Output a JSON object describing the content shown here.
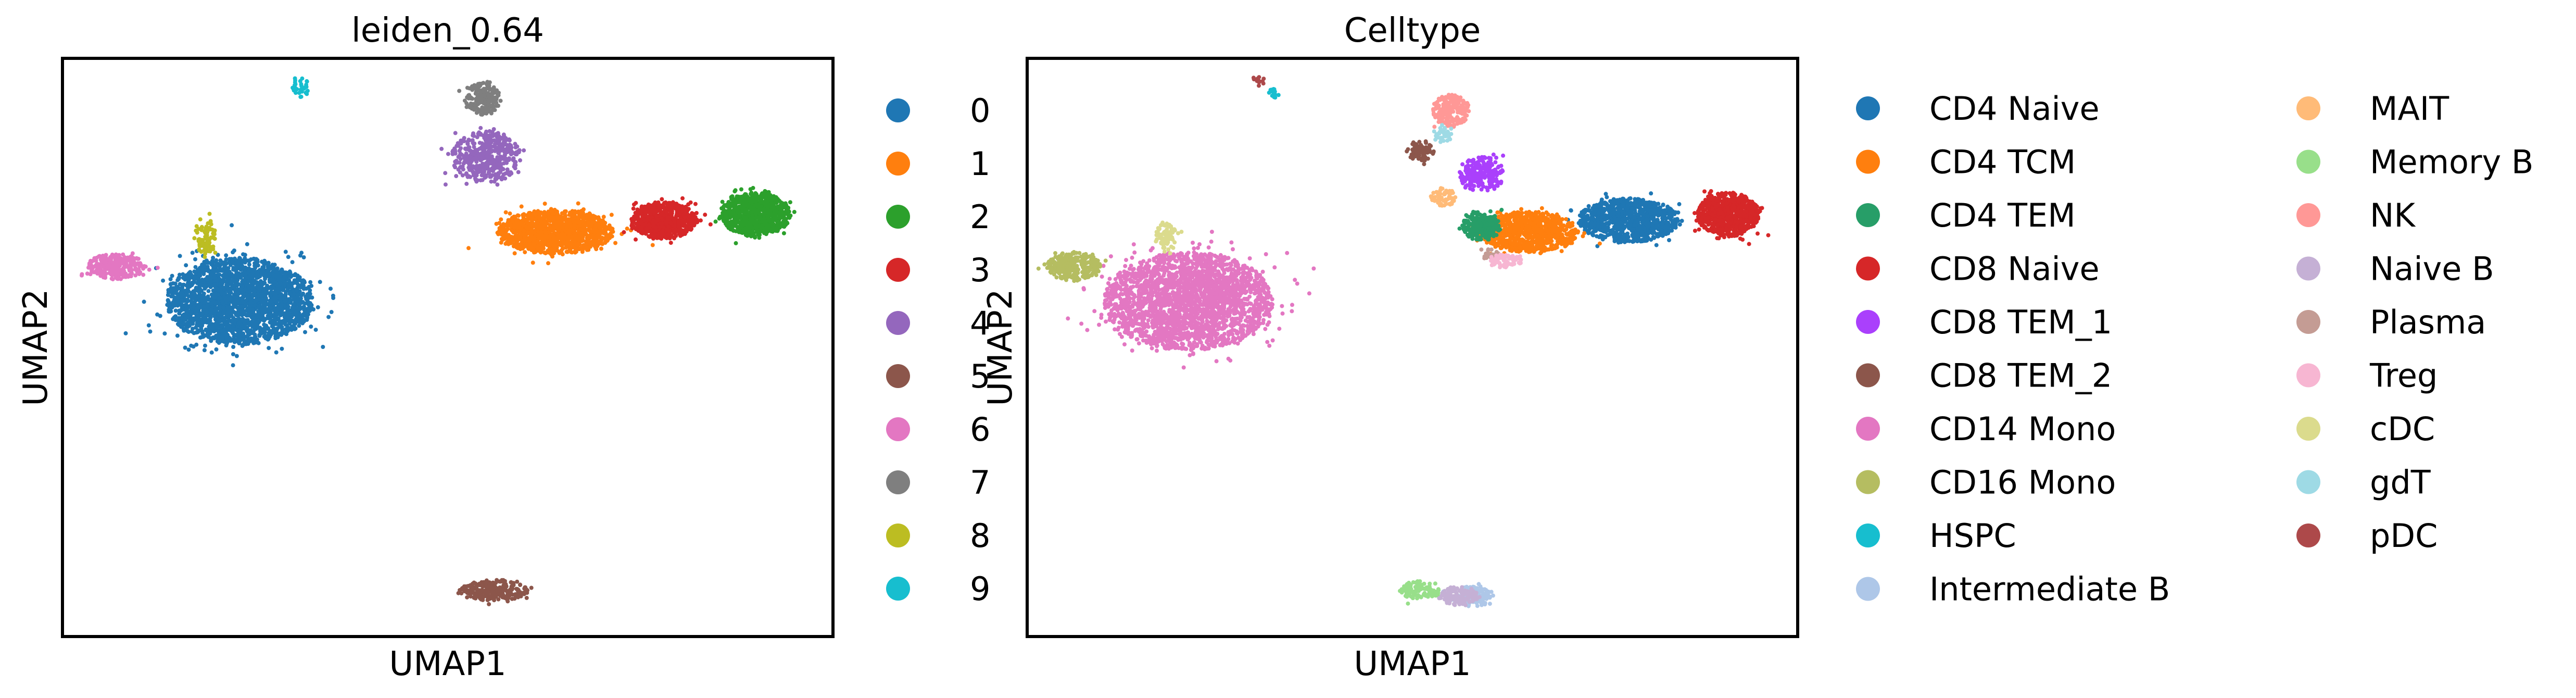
{
  "chart_data": [
    {
      "type": "scatter",
      "title": "leiden_0.64",
      "xlabel": "UMAP1",
      "ylabel": "UMAP2",
      "xlim": [
        0,
        100
      ],
      "ylim": [
        0,
        100
      ],
      "grid": false,
      "legend_placement": "right",
      "series": [
        {
          "name": "0",
          "color": "#1f77b4",
          "clusters": [
            {
              "cx": 23,
              "cy": 58,
              "rx": 9.5,
              "ry": 7.5,
              "n": 2400
            }
          ]
        },
        {
          "name": "1",
          "color": "#ff7f0e",
          "clusters": [
            {
              "cx": 64,
              "cy": 70,
              "rx": 7.5,
              "ry": 3.8,
              "n": 1200
            }
          ]
        },
        {
          "name": "2",
          "color": "#2ca02c",
          "clusters": [
            {
              "cx": 90,
              "cy": 73,
              "rx": 4.5,
              "ry": 3.8,
              "n": 800
            }
          ]
        },
        {
          "name": "3",
          "color": "#d62728",
          "clusters": [
            {
              "cx": 78,
              "cy": 72,
              "rx": 4.2,
              "ry": 3.2,
              "n": 700
            }
          ]
        },
        {
          "name": "4",
          "color": "#9467bd",
          "clusters": [
            {
              "cx": 55,
              "cy": 83,
              "rx": 4.5,
              "ry": 4.5,
              "n": 450
            }
          ]
        },
        {
          "name": "5",
          "color": "#8c564b",
          "clusters": [
            {
              "cx": 56,
              "cy": 8,
              "rx": 4.5,
              "ry": 1.8,
              "n": 250
            }
          ]
        },
        {
          "name": "6",
          "color": "#e377c2",
          "clusters": [
            {
              "cx": 7,
              "cy": 64,
              "rx": 3.8,
              "ry": 2.2,
              "n": 280
            }
          ]
        },
        {
          "name": "7",
          "color": "#7f7f7f",
          "clusters": [
            {
              "cx": 54.5,
              "cy": 93,
              "rx": 2.3,
              "ry": 2.8,
              "n": 200
            }
          ]
        },
        {
          "name": "8",
          "color": "#bcbd22",
          "clusters": [
            {
              "cx": 18.5,
              "cy": 69,
              "rx": 1.4,
              "ry": 3.5,
              "n": 90
            }
          ]
        },
        {
          "name": "9",
          "color": "#17becf",
          "clusters": [
            {
              "cx": 31,
              "cy": 95,
              "rx": 1.2,
              "ry": 1.8,
              "n": 30
            }
          ]
        }
      ]
    },
    {
      "type": "scatter",
      "title": "Celltype",
      "xlabel": "UMAP1",
      "ylabel": "UMAP2",
      "xlim": [
        0,
        100
      ],
      "ylim": [
        0,
        100
      ],
      "grid": false,
      "legend_placement": "right",
      "legend_columns": 2,
      "series": [
        {
          "name": "CD4 Naive",
          "color": "#1f77b4",
          "clusters": [
            {
              "cx": 78,
              "cy": 72,
              "rx": 6.5,
              "ry": 3.8,
              "n": 900
            }
          ]
        },
        {
          "name": "CD4 TCM",
          "color": "#ff7f0e",
          "clusters": [
            {
              "cx": 65,
              "cy": 70,
              "rx": 6.5,
              "ry": 3.5,
              "n": 900
            }
          ]
        },
        {
          "name": "CD4 TEM",
          "color": "#279e68",
          "clusters": [
            {
              "cx": 59,
              "cy": 71,
              "rx": 2.5,
              "ry": 2.5,
              "n": 250
            }
          ]
        },
        {
          "name": "CD8 Naive",
          "color": "#d62728",
          "clusters": [
            {
              "cx": 91,
              "cy": 73,
              "rx": 4,
              "ry": 3.8,
              "n": 700
            }
          ]
        },
        {
          "name": "CD8 TEM_1",
          "color": "#aa40fc",
          "clusters": [
            {
              "cx": 59,
              "cy": 80,
              "rx": 3,
              "ry": 3,
              "n": 220
            }
          ]
        },
        {
          "name": "CD8 TEM_2",
          "color": "#8c564b",
          "clusters": [
            {
              "cx": 51,
              "cy": 84,
              "rx": 1.8,
              "ry": 1.8,
              "n": 90
            }
          ]
        },
        {
          "name": "CD14 Mono",
          "color": "#e377c2",
          "clusters": [
            {
              "cx": 21,
              "cy": 58,
              "rx": 11,
              "ry": 8.5,
              "n": 2500
            }
          ]
        },
        {
          "name": "CD16 Mono",
          "color": "#b5bd61",
          "clusters": [
            {
              "cx": 6,
              "cy": 64,
              "rx": 3.5,
              "ry": 2.5,
              "n": 300
            }
          ]
        },
        {
          "name": "HSPC",
          "color": "#17becf",
          "clusters": [
            {
              "cx": 32,
              "cy": 94,
              "rx": 0.8,
              "ry": 1.0,
              "n": 15
            }
          ]
        },
        {
          "name": "Intermediate B",
          "color": "#aec7e8",
          "clusters": [
            {
              "cx": 58,
              "cy": 7,
              "rx": 2.5,
              "ry": 1.8,
              "n": 120
            }
          ]
        },
        {
          "name": "MAIT",
          "color": "#ffbb78",
          "clusters": [
            {
              "cx": 54,
              "cy": 76,
              "rx": 1.6,
              "ry": 1.6,
              "n": 60
            }
          ]
        },
        {
          "name": "Memory B",
          "color": "#98df8a",
          "clusters": [
            {
              "cx": 51,
              "cy": 8,
              "rx": 2.5,
              "ry": 1.6,
              "n": 120
            }
          ]
        },
        {
          "name": "NK",
          "color": "#ff9896",
          "clusters": [
            {
              "cx": 55,
              "cy": 91,
              "rx": 2.4,
              "ry": 2.8,
              "n": 200
            }
          ]
        },
        {
          "name": "Naive B",
          "color": "#c5b0d5",
          "clusters": [
            {
              "cx": 56,
              "cy": 7,
              "rx": 2.5,
              "ry": 1.8,
              "n": 120
            }
          ]
        },
        {
          "name": "Plasma",
          "color": "#c49c94",
          "clusters": [
            {
              "cx": 60,
              "cy": 66,
              "rx": 1.2,
              "ry": 1.0,
              "n": 25
            }
          ]
        },
        {
          "name": "Treg",
          "color": "#f7b6d2",
          "clusters": [
            {
              "cx": 62,
              "cy": 65,
              "rx": 2.2,
              "ry": 1.2,
              "n": 70
            }
          ]
        },
        {
          "name": "cDC",
          "color": "#dbdb8d",
          "clusters": [
            {
              "cx": 18,
              "cy": 69,
              "rx": 1.4,
              "ry": 2.5,
              "n": 80
            }
          ]
        },
        {
          "name": "gdT",
          "color": "#9edae5",
          "clusters": [
            {
              "cx": 54,
              "cy": 87,
              "rx": 1.5,
              "ry": 1.5,
              "n": 40
            }
          ]
        },
        {
          "name": "pDC",
          "color": "#ad494a",
          "clusters": [
            {
              "cx": 30,
              "cy": 96,
              "rx": 0.9,
              "ry": 0.9,
              "n": 15
            }
          ]
        }
      ]
    }
  ]
}
